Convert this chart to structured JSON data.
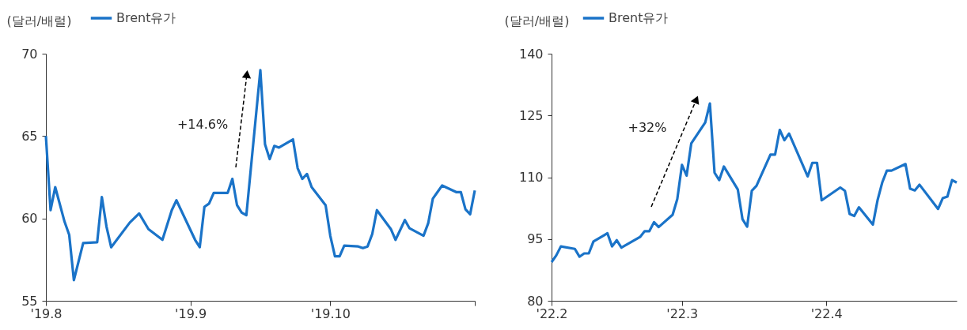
{
  "chart_data": [
    {
      "type": "line",
      "ylabel": "(달러/배럴)",
      "legend": "top left",
      "annotations": [
        "+14.6%"
      ],
      "x": [
        "2019-08-01",
        "2019-08-02",
        "2019-08-03",
        "2019-08-05",
        "2019-08-06",
        "2019-08-07",
        "2019-08-09",
        "2019-08-12",
        "2019-08-13",
        "2019-08-14",
        "2019-08-15",
        "2019-08-19",
        "2019-08-21",
        "2019-08-23",
        "2019-08-26",
        "2019-08-28",
        "2019-08-29",
        "2019-09-02",
        "2019-09-03",
        "2019-09-04",
        "2019-09-05",
        "2019-09-06",
        "2019-09-09",
        "2019-09-10",
        "2019-09-11",
        "2019-09-12",
        "2019-09-13",
        "2019-09-16",
        "2019-09-17",
        "2019-09-18",
        "2019-09-19",
        "2019-09-20",
        "2019-09-23",
        "2019-09-24",
        "2019-09-25",
        "2019-09-26",
        "2019-09-27",
        "2019-09-30",
        "2019-10-01",
        "2019-10-02",
        "2019-10-03",
        "2019-10-04",
        "2019-10-07",
        "2019-10-08",
        "2019-10-09",
        "2019-10-10",
        "2019-10-11",
        "2019-10-14",
        "2019-10-15",
        "2019-10-17",
        "2019-10-18",
        "2019-10-21",
        "2019-10-22",
        "2019-10-23",
        "2019-10-24",
        "2019-10-25",
        "2019-10-28",
        "2019-10-29",
        "2019-10-30",
        "2019-10-31",
        "2019-11-01"
      ],
      "series": [
        {
          "name": "Brent유가",
          "color": "#1a73c8",
          "values": [
            65.0,
            60.5,
            61.9,
            59.8,
            59.0,
            56.25,
            58.5,
            58.55,
            61.3,
            59.5,
            58.25,
            59.75,
            60.3,
            59.35,
            58.7,
            60.5,
            61.1,
            58.7,
            58.25,
            60.7,
            60.9,
            61.55,
            61.55,
            62.4,
            60.8,
            60.35,
            60.2,
            69.0,
            64.5,
            63.6,
            64.4,
            64.3,
            64.8,
            63.05,
            62.4,
            62.7,
            61.9,
            60.8,
            58.95,
            57.7,
            57.7,
            58.35,
            58.3,
            58.2,
            58.3,
            59.05,
            60.5,
            59.35,
            58.7,
            59.9,
            59.4,
            58.95,
            59.7,
            61.2,
            61.6,
            62.0,
            61.6,
            61.6,
            60.55,
            60.25,
            61.7
          ]
        }
      ],
      "xlim": [
        "2019-08-01",
        "2019-11-01"
      ],
      "xticks": [
        {
          "value": "2019-08-01",
          "label": "'19.8"
        },
        {
          "value": "2019-09-01",
          "label": "'19.9"
        },
        {
          "value": "2019-10-01",
          "label": "'19.10"
        },
        {
          "value": "2019-11-01",
          "label": null
        }
      ],
      "ylim": [
        55,
        70
      ],
      "yticks": [
        55,
        60,
        65,
        70
      ]
    },
    {
      "type": "line",
      "ylabel": "(달러/배럴)",
      "legend": "top left",
      "annotations": [
        "+32%"
      ],
      "x": [
        "2022-02-01",
        "2022-02-02",
        "2022-02-03",
        "2022-02-06",
        "2022-02-07",
        "2022-02-08",
        "2022-02-09",
        "2022-02-10",
        "2022-02-13",
        "2022-02-14",
        "2022-02-15",
        "2022-02-16",
        "2022-02-20",
        "2022-02-21",
        "2022-02-22",
        "2022-02-23",
        "2022-02-24",
        "2022-02-27",
        "2022-02-28",
        "2022-03-01",
        "2022-03-02",
        "2022-03-03",
        "2022-03-06",
        "2022-03-07",
        "2022-03-08",
        "2022-03-09",
        "2022-03-10",
        "2022-03-13",
        "2022-03-14",
        "2022-03-15",
        "2022-03-16",
        "2022-03-17",
        "2022-03-20",
        "2022-03-21",
        "2022-03-22",
        "2022-03-23",
        "2022-03-24",
        "2022-03-28",
        "2022-03-29",
        "2022-03-30",
        "2022-03-31",
        "2022-04-04",
        "2022-04-05",
        "2022-04-06",
        "2022-04-07",
        "2022-04-08",
        "2022-04-11",
        "2022-04-12",
        "2022-04-13",
        "2022-04-14",
        "2022-04-15",
        "2022-04-18",
        "2022-04-19",
        "2022-04-20",
        "2022-04-21",
        "2022-04-25",
        "2022-04-26",
        "2022-04-27",
        "2022-04-28",
        "2022-04-29"
      ],
      "series": [
        {
          "name": "Brent유가",
          "color": "#1a73c8",
          "values": [
            89.4,
            91.0,
            93.2,
            92.6,
            90.7,
            91.5,
            91.5,
            94.4,
            96.4,
            93.2,
            94.7,
            92.9,
            95.5,
            96.9,
            96.9,
            99.1,
            97.9,
            100.9,
            104.7,
            113.0,
            110.4,
            118.2,
            123.3,
            127.9,
            111.1,
            109.3,
            112.6,
            107.0,
            99.8,
            98.0,
            106.7,
            107.9,
            115.5,
            115.5,
            121.5,
            119.0,
            120.6,
            110.2,
            113.5,
            113.5,
            104.4,
            107.5,
            106.7,
            101.1,
            100.6,
            102.7,
            98.5,
            104.4,
            108.7,
            111.6,
            111.6,
            113.2,
            107.2,
            106.8,
            108.2,
            102.3,
            104.9,
            105.3,
            109.3,
            108.7
          ]
        }
      ],
      "xlim": [
        "2022-02-01",
        "2022-04-29"
      ],
      "xticks": [
        {
          "value": "2022-02-01",
          "label": "'22.2"
        },
        {
          "value": "2022-03-01",
          "label": "'22.3"
        },
        {
          "value": "2022-04-01",
          "label": "'22.4"
        }
      ],
      "ylim": [
        80,
        140
      ],
      "yticks": [
        80,
        95,
        110,
        125,
        140
      ]
    }
  ]
}
